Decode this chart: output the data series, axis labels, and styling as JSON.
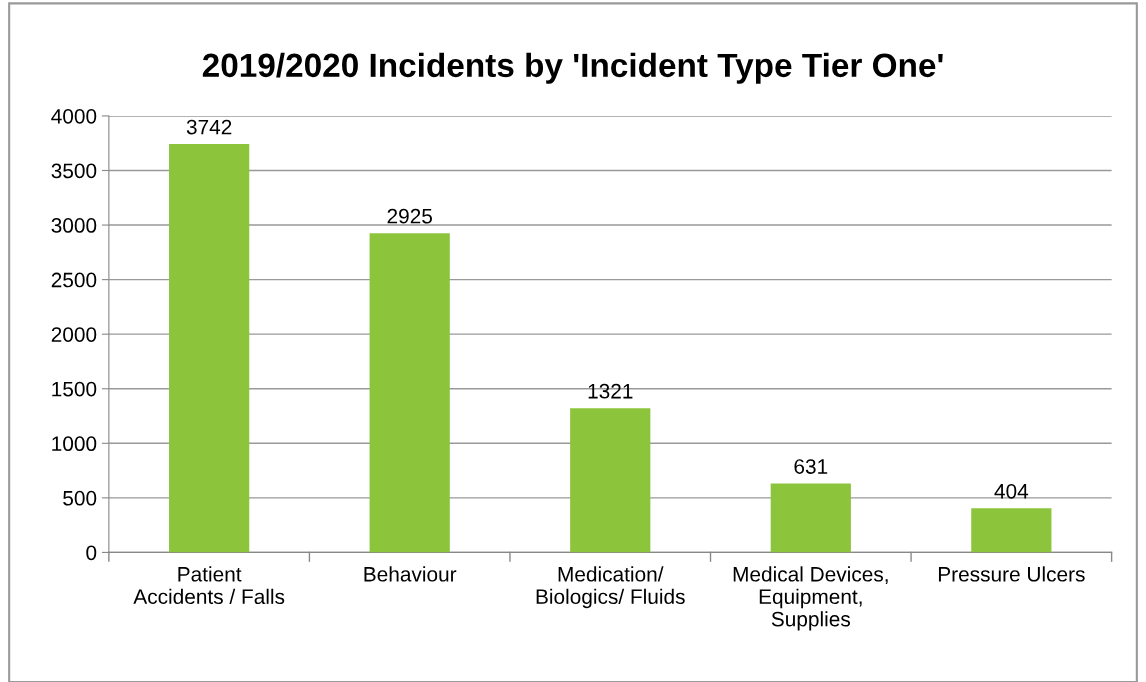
{
  "chart_data": {
    "type": "bar",
    "title": "2019/2020 Incidents by 'Incident Type Tier One'",
    "categories": [
      "Patient\nAccidents / Falls",
      "Behaviour",
      "Medication/\nBiologics/ Fluids",
      "Medical Devices,\nEquipment,\nSupplies",
      "Pressure Ulcers"
    ],
    "values": [
      3742,
      2925,
      1321,
      631,
      404
    ],
    "color": "#8cc43c",
    "ylim": [
      0,
      4000
    ],
    "yticks": [
      0,
      500,
      1000,
      1500,
      2000,
      2500,
      3000,
      3500,
      4000
    ],
    "grid": "y",
    "data_labels": true
  }
}
